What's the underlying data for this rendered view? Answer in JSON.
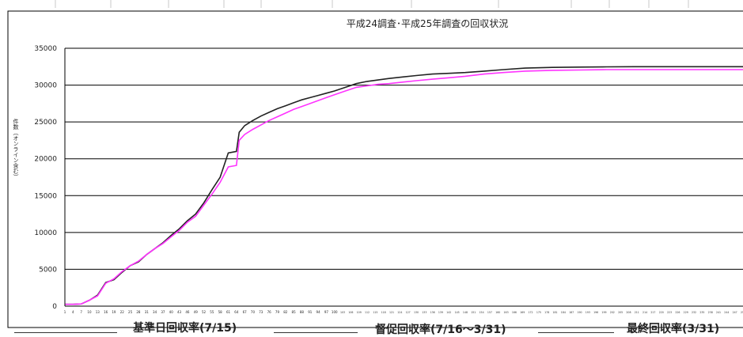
{
  "chart_data": {
    "type": "line",
    "title": "平成24調査･平成25年調査の回収状況",
    "ylabel": "件数（オンライン含む）",
    "xlabel": "",
    "ylim": [
      0,
      35000
    ],
    "yticks": [
      0,
      5000,
      10000,
      15000,
      20000,
      25000,
      30000,
      35000
    ],
    "x_first_ticks": [
      1,
      4,
      7,
      10,
      13,
      16,
      19,
      22,
      25,
      28,
      31,
      34,
      37,
      40,
      43,
      46,
      49,
      52,
      55,
      58,
      61,
      64,
      67,
      70,
      73,
      76,
      79,
      82,
      85,
      88,
      91,
      94,
      97,
      100
    ],
    "xlim": [
      1,
      250
    ],
    "grid": true,
    "series": [
      {
        "color": "#222222",
        "points": [
          [
            1,
            250
          ],
          [
            4,
            250
          ],
          [
            7,
            300
          ],
          [
            10,
            800
          ],
          [
            13,
            1500
          ],
          [
            16,
            3200
          ],
          [
            19,
            3600
          ],
          [
            22,
            4600
          ],
          [
            25,
            5500
          ],
          [
            28,
            6000
          ],
          [
            31,
            7000
          ],
          [
            34,
            7800
          ],
          [
            37,
            8600
          ],
          [
            40,
            9600
          ],
          [
            43,
            10500
          ],
          [
            46,
            11600
          ],
          [
            49,
            12500
          ],
          [
            52,
            14000
          ],
          [
            55,
            15800
          ],
          [
            58,
            17500
          ],
          [
            61,
            20800
          ],
          [
            64,
            21000
          ],
          [
            65,
            23600
          ],
          [
            67,
            24500
          ],
          [
            70,
            25200
          ],
          [
            73,
            25800
          ],
          [
            76,
            26300
          ],
          [
            79,
            26800
          ],
          [
            82,
            27200
          ],
          [
            85,
            27600
          ],
          [
            88,
            28000
          ],
          [
            91,
            28300
          ],
          [
            94,
            28600
          ],
          [
            97,
            28900
          ],
          [
            100,
            29200
          ],
          [
            104,
            29700
          ],
          [
            108,
            30200
          ],
          [
            112,
            30500
          ],
          [
            116,
            30700
          ],
          [
            120,
            30900
          ],
          [
            125,
            31100
          ],
          [
            130,
            31300
          ],
          [
            136,
            31500
          ],
          [
            142,
            31600
          ],
          [
            148,
            31700
          ],
          [
            155,
            31900
          ],
          [
            162,
            32100
          ],
          [
            170,
            32300
          ],
          [
            180,
            32400
          ],
          [
            190,
            32450
          ],
          [
            200,
            32480
          ],
          [
            210,
            32500
          ],
          [
            220,
            32500
          ],
          [
            230,
            32500
          ],
          [
            240,
            32500
          ],
          [
            250,
            32500
          ]
        ]
      },
      {
        "color": "#ff33ff",
        "points": [
          [
            1,
            250
          ],
          [
            4,
            250
          ],
          [
            7,
            300
          ],
          [
            10,
            800
          ],
          [
            13,
            1400
          ],
          [
            16,
            3100
          ],
          [
            19,
            3700
          ],
          [
            22,
            4700
          ],
          [
            25,
            5500
          ],
          [
            28,
            6100
          ],
          [
            31,
            7000
          ],
          [
            34,
            7800
          ],
          [
            37,
            8500
          ],
          [
            40,
            9400
          ],
          [
            43,
            10300
          ],
          [
            46,
            11400
          ],
          [
            49,
            12200
          ],
          [
            52,
            13700
          ],
          [
            55,
            15200
          ],
          [
            58,
            16800
          ],
          [
            61,
            18900
          ],
          [
            64,
            19100
          ],
          [
            65,
            22500
          ],
          [
            67,
            23300
          ],
          [
            70,
            24000
          ],
          [
            73,
            24600
          ],
          [
            76,
            25200
          ],
          [
            79,
            25700
          ],
          [
            82,
            26200
          ],
          [
            85,
            26700
          ],
          [
            88,
            27100
          ],
          [
            91,
            27500
          ],
          [
            94,
            27900
          ],
          [
            97,
            28300
          ],
          [
            100,
            28700
          ],
          [
            104,
            29200
          ],
          [
            108,
            29700
          ],
          [
            112,
            29900
          ],
          [
            116,
            30100
          ],
          [
            120,
            30200
          ],
          [
            125,
            30400
          ],
          [
            130,
            30600
          ],
          [
            136,
            30800
          ],
          [
            142,
            31000
          ],
          [
            148,
            31200
          ],
          [
            155,
            31500
          ],
          [
            162,
            31700
          ],
          [
            170,
            31900
          ],
          [
            180,
            32000
          ],
          [
            190,
            32050
          ],
          [
            200,
            32100
          ],
          [
            210,
            32100
          ],
          [
            220,
            32100
          ],
          [
            230,
            32100
          ],
          [
            240,
            32100
          ],
          [
            250,
            32100
          ]
        ]
      }
    ]
  },
  "phases": {
    "base": "基準日回収率(7/15)",
    "reminder": "督促回収率(7/16～3/31)",
    "final": "最終回収率(3/31)"
  },
  "colors": {
    "grid": "#000000",
    "plot_bg": "#ffffff",
    "frame": "#000000"
  }
}
